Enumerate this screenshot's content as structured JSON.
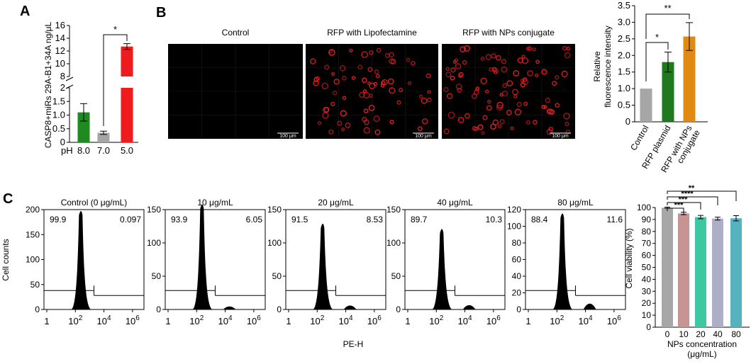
{
  "panels": {
    "A": "A",
    "B": "B",
    "C": "C"
  },
  "colors": {
    "green": "#1f8a1f",
    "gray": "#a6a6a6",
    "red": "#ee1c1c",
    "orange": "#e08a10",
    "c_gray": "#a7a7a7",
    "c_rose": "#c79393",
    "c_teal": "#3cc8a0",
    "c_lav": "#aeaec8",
    "c_cyan": "#55b3c0",
    "cell": "#e8201e"
  },
  "microscopy": {
    "titles": [
      "Control",
      "RFP with Lipofectamine",
      "RFP with NPs conjugate"
    ],
    "scalebar": "100 μm"
  },
  "chart_data": [
    {
      "panel": "A",
      "type": "bar",
      "ylabel": "CASP8+miRs 29A-B1+34A ng/μL",
      "x_prefix": "pH",
      "categories": [
        "8.0",
        "7.0",
        "5.0"
      ],
      "values": [
        1.1,
        0.35,
        12.7
      ],
      "errors": [
        0.32,
        0.06,
        0.45
      ],
      "colors": [
        "#1f8a1f",
        "#a6a6a6",
        "#ee1c1c"
      ],
      "y_lower_ticks": [
        "0",
        "0.5",
        "1.0",
        "1.5",
        "2"
      ],
      "y_upper_ticks": [
        "8",
        "10",
        "12",
        "14",
        "16"
      ],
      "axis_break": [
        2,
        8
      ],
      "significance": [
        {
          "from": 1,
          "to": 2,
          "label": "*"
        }
      ]
    },
    {
      "panel": "B",
      "type": "bar",
      "ylabel": "Relative\nfluorescence intensity",
      "categories": [
        "Control",
        "RFP plasmid",
        "RFP with NPs\nconjugate"
      ],
      "values": [
        1.0,
        1.8,
        2.57
      ],
      "errors": [
        0,
        0.3,
        0.42
      ],
      "colors": [
        "#a6a6a6",
        "#1f7a1f",
        "#e08a10"
      ],
      "ylim": [
        0,
        3.5
      ],
      "yticks": [
        "0",
        "0.5",
        "1.0",
        "1.5",
        "2.0",
        "2.5",
        "3.0",
        "3.5"
      ],
      "significance": [
        {
          "from": 0,
          "to": 1,
          "label": "*"
        },
        {
          "from": 0,
          "to": 2,
          "label": "**"
        }
      ]
    },
    {
      "panel": "C-histograms",
      "type": "area",
      "ylabel": "Cell counts",
      "xlabel": "PE-H",
      "xticks": [
        "1",
        "10^2",
        "10^4",
        "10^6"
      ],
      "histograms": [
        {
          "title": "Control (0 μg/mL)",
          "left": "99.9",
          "right": "0.097",
          "ymax": 200,
          "yticks": [
            "0",
            "50",
            "100",
            "150",
            "200"
          ],
          "peak": 200,
          "second_peak": 0
        },
        {
          "title": "10 μg/mL",
          "left": "93.9",
          "right": "6.05",
          "ymax": 150,
          "yticks": [
            "0",
            "50",
            "100",
            "150"
          ],
          "peak": 160,
          "second_peak": 9
        },
        {
          "title": "20 μg/mL",
          "left": "91.5",
          "right": "8.53",
          "ymax": 150,
          "yticks": [
            "0",
            "50",
            "100",
            "150"
          ],
          "peak": 131,
          "second_peak": 12
        },
        {
          "title": "40 μg/mL",
          "left": "89.7",
          "right": "10.3",
          "ymax": 150,
          "yticks": [
            "0",
            "50",
            "100",
            "150"
          ],
          "peak": 123,
          "second_peak": 13
        },
        {
          "title": "80 μg/mL",
          "left": "88.4",
          "right": "11.6",
          "ymax": 120,
          "yticks": [
            "0",
            "20",
            "40",
            "60",
            "80",
            "100",
            "120"
          ],
          "peak": 117,
          "second_peak": 14
        }
      ]
    },
    {
      "panel": "C-viability",
      "type": "bar",
      "ylabel": "Cell viability (%)",
      "xlabel": "NPs concentration\n(μg/mL)",
      "categories": [
        "0",
        "10",
        "20",
        "40",
        "80"
      ],
      "values": [
        99.8,
        95,
        92,
        90.7,
        91
      ],
      "errors": [
        0.5,
        1.0,
        1.4,
        1.2,
        2.2
      ],
      "colors": [
        "#a7a7a7",
        "#c79393",
        "#3cc8a0",
        "#aeaec8",
        "#55b3c0"
      ],
      "ylim": [
        0,
        100
      ],
      "yticks": [
        "0",
        "10",
        "20",
        "30",
        "40",
        "50",
        "60",
        "70",
        "80",
        "90",
        "100"
      ],
      "significance": [
        {
          "from": 0,
          "to": 1,
          "label": "***"
        },
        {
          "from": 0,
          "to": 2,
          "label": "***"
        },
        {
          "from": 0,
          "to": 3,
          "label": "****"
        },
        {
          "from": 0,
          "to": 4,
          "label": "**"
        }
      ]
    }
  ]
}
